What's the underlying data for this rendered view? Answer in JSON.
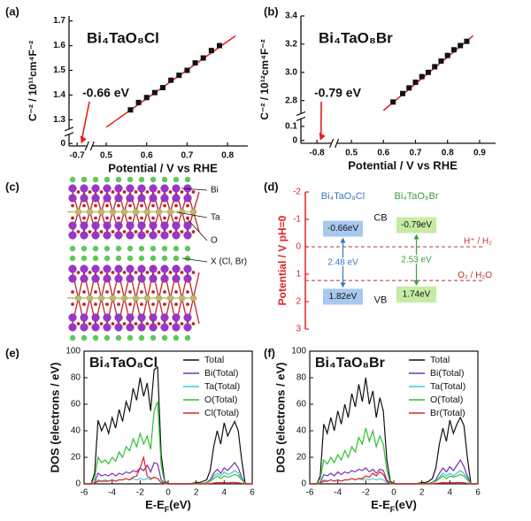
{
  "chart_data": [
    {
      "type": "scatter",
      "panel_label": "(a)",
      "title": "Bi₄TaO₈Cl",
      "x_label": "Potential / V vs RHE",
      "y_label": "C⁻² / 10¹¹cm⁴F⁻²",
      "xlim": [
        -0.72,
        0.85
      ],
      "xbreak": [
        -0.68,
        0.47
      ],
      "xticks": [
        -0.7,
        0.5,
        0.6,
        0.7,
        0.8
      ],
      "ylim": [
        -0.01,
        1.72
      ],
      "ybreak": [
        0.03,
        1.27
      ],
      "yticks": [
        0,
        1.3,
        1.4,
        1.5,
        1.6,
        1.7
      ],
      "points": {
        "color": "#111111",
        "x": [
          0.56,
          0.58,
          0.6,
          0.62,
          0.64,
          0.66,
          0.68,
          0.7,
          0.72,
          0.74,
          0.76,
          0.78
        ],
        "y": [
          1.34,
          1.37,
          1.39,
          1.41,
          1.43,
          1.46,
          1.48,
          1.5,
          1.53,
          1.55,
          1.58,
          1.6
        ]
      },
      "fit": {
        "color": "#e02020",
        "x": [
          0.5,
          0.82
        ],
        "y": [
          1.27,
          1.64
        ]
      },
      "annotation": {
        "text": "-0.66 eV",
        "x": -0.69,
        "y": 0,
        "color": "#e02020"
      }
    },
    {
      "type": "scatter",
      "panel_label": "(b)",
      "title": "Bi₄TaO₈Br",
      "x_label": "Potential / V vs RHE",
      "y_label": "C⁻² / 10¹²cm⁴F⁻²",
      "xlim": [
        -0.85,
        0.95
      ],
      "xbreak": [
        -0.76,
        0.46
      ],
      "xticks": [
        -0.8,
        0.5,
        0.6,
        0.7,
        0.8,
        0.9
      ],
      "ylim": [
        -0.02,
        3.4
      ],
      "ybreak": [
        0.14,
        2.72
      ],
      "yticks": [
        0,
        0.1,
        2.8,
        {
          "value": 3,
          "label": "3.0"
        },
        3.2,
        3.4
      ],
      "points": {
        "color": "#111111",
        "x": [
          0.63,
          0.66,
          0.68,
          0.7,
          0.72,
          0.74,
          0.76,
          0.78,
          0.8,
          0.82,
          0.84,
          0.86
        ],
        "y": [
          2.79,
          2.85,
          2.89,
          2.93,
          2.97,
          3.0,
          3.04,
          3.08,
          3.12,
          3.16,
          3.19,
          3.22
        ]
      },
      "fit": {
        "color": "#e02020",
        "x": [
          0.6,
          0.88
        ],
        "y": [
          2.73,
          3.26
        ]
      },
      "annotation": {
        "text": "-0.79 eV",
        "x": -0.79,
        "y": 0,
        "color": "#e02020"
      }
    },
    {
      "type": "band",
      "panel_label": "(d)",
      "y_label": "Potential / V pH=0",
      "ylim": [
        -2,
        3
      ],
      "yticks": [
        -2,
        -1,
        0,
        1,
        2,
        3
      ],
      "y_inverted": true,
      "axis_color": "#e02020",
      "materials": [
        {
          "name": "Bi₄TaO₈Cl",
          "color": "#3a78c0",
          "box_color": "#a9c8ef",
          "cb": -0.66,
          "cb_label": "-0.66eV",
          "vb": 1.82,
          "vb_label": "1.82eV",
          "gap": 2.48,
          "gap_label": "2.48 eV"
        },
        {
          "name": "Bi₄TaO₈Br",
          "color": "#3aa03a",
          "box_color": "#c6eca4",
          "cb": -0.79,
          "cb_label": "-0.79eV",
          "vb": 1.74,
          "vb_label": "1.74eV",
          "gap": 2.53,
          "gap_label": "2.53 eV"
        }
      ],
      "band_labels": [
        "CB",
        "VB"
      ],
      "levels": [
        {
          "label": "H⁺ / H₂",
          "value": 0
        },
        {
          "label": "O₂ / H₂O",
          "value": 1.23
        }
      ],
      "level_color": "#c03030"
    },
    {
      "type": "line",
      "panel_label": "(e)",
      "title": "Bi₄TaO₈Cl",
      "x_label": {
        "text": "E-E",
        "sub": "F",
        "tail": "(eV)"
      },
      "y_label": "DOS (electrons / eV)",
      "xlim": [
        -6,
        6
      ],
      "xticks": [
        -6,
        -4,
        -2,
        0,
        2,
        4,
        6
      ],
      "ylim": [
        0,
        100
      ],
      "yticks": [
        0,
        20,
        40,
        60,
        80,
        100
      ],
      "legend": "upper right",
      "x": [
        -6,
        -5.75,
        -5.5,
        -5.25,
        -5,
        -4.75,
        -4.5,
        -4.25,
        -4,
        -3.75,
        -3.5,
        -3.25,
        -3,
        -2.75,
        -2.5,
        -2.25,
        -2,
        -1.75,
        -1.5,
        -1.25,
        -1,
        -0.75,
        -0.5,
        -0.25,
        0,
        0.25,
        0.5,
        0.75,
        1,
        1.25,
        1.5,
        1.75,
        2,
        2.25,
        2.5,
        2.75,
        3,
        3.25,
        3.5,
        3.75,
        4,
        4.25,
        4.5,
        4.75,
        5,
        5.25,
        5.5,
        5.75,
        6
      ],
      "series": [
        {
          "name": "Total",
          "color": "#111111",
          "values": [
            0,
            0,
            0,
            8,
            48,
            40,
            46,
            38,
            50,
            42,
            56,
            47,
            62,
            55,
            72,
            63,
            80,
            66,
            76,
            55,
            86,
            88,
            22,
            2,
            0,
            0,
            0,
            0,
            0,
            0,
            0,
            0.5,
            1,
            1,
            2,
            3,
            10,
            28,
            40,
            30,
            46,
            36,
            42,
            47,
            40,
            18,
            0,
            0,
            0
          ]
        },
        {
          "name": "Bi(Total)",
          "color": "#7a30b0",
          "values": [
            0,
            0,
            0,
            1,
            8,
            6,
            7,
            6,
            8,
            6,
            8,
            7,
            9,
            8,
            10,
            9,
            12,
            10,
            14,
            9,
            16,
            15,
            3,
            0.5,
            0,
            0,
            0,
            0,
            0,
            0,
            0,
            0.1,
            0.2,
            0.3,
            0.5,
            1,
            3,
            8,
            11,
            8,
            12,
            10,
            13,
            16,
            12,
            5,
            0,
            0,
            0
          ]
        },
        {
          "name": "Ta(Total)",
          "color": "#40c8d0",
          "values": [
            0,
            0,
            0,
            0.5,
            3,
            2,
            3,
            2,
            3,
            2,
            3,
            3,
            4,
            3,
            4,
            3,
            4,
            3,
            4,
            3,
            5,
            4,
            1,
            0.2,
            0,
            0,
            0,
            0,
            0,
            0,
            0,
            0.1,
            0.2,
            0.2,
            0.4,
            0.8,
            2,
            6,
            8,
            6,
            9,
            7,
            8,
            10,
            8,
            4,
            0,
            0,
            0
          ]
        },
        {
          "name": "O(Total)",
          "color": "#30c030",
          "values": [
            0,
            0,
            0,
            4,
            20,
            16,
            18,
            15,
            20,
            17,
            24,
            20,
            28,
            25,
            34,
            28,
            38,
            30,
            36,
            26,
            55,
            62,
            14,
            1,
            0,
            0,
            0,
            0,
            0,
            0,
            0,
            0.2,
            0.3,
            0.3,
            0.5,
            0.8,
            2,
            4,
            6,
            4,
            6,
            5,
            6,
            7,
            6,
            3,
            0,
            0,
            0
          ]
        },
        {
          "name": "Cl(Total)",
          "color": "#e02020",
          "values": [
            0,
            0,
            0,
            0.5,
            2,
            2,
            2,
            2,
            3,
            2,
            3,
            3,
            4,
            3,
            5,
            6,
            12,
            20,
            6,
            4,
            5,
            4,
            1,
            0.2,
            0,
            0,
            0,
            0,
            0,
            0,
            0,
            0,
            0,
            0,
            0,
            0,
            0.3,
            0.6,
            1,
            0.8,
            1,
            0.8,
            1,
            1,
            0.8,
            0.4,
            0,
            0,
            0
          ]
        }
      ]
    },
    {
      "type": "line",
      "panel_label": "(f)",
      "title": "Bi₄TaO₈Br",
      "x_label": {
        "text": "E-E",
        "sub": "F",
        "tail": "(eV)"
      },
      "y_label": "DOS (electrons / eV)",
      "xlim": [
        -6,
        6
      ],
      "xticks": [
        -6,
        -4,
        -2,
        0,
        2,
        4,
        6
      ],
      "ylim": [
        0,
        100
      ],
      "yticks": [
        0,
        20,
        40,
        60,
        80,
        100
      ],
      "legend": "upper right",
      "x": [
        -6,
        -5.75,
        -5.5,
        -5.25,
        -5,
        -4.75,
        -4.5,
        -4.25,
        -4,
        -3.75,
        -3.5,
        -3.25,
        -3,
        -2.75,
        -2.5,
        -2.25,
        -2,
        -1.75,
        -1.5,
        -1.25,
        -1,
        -0.75,
        -0.5,
        -0.25,
        0,
        0.25,
        0.5,
        0.75,
        1,
        1.25,
        1.5,
        1.75,
        2,
        2.25,
        2.5,
        2.75,
        3,
        3.25,
        3.5,
        3.75,
        4,
        4.25,
        4.5,
        4.75,
        5,
        5.25,
        5.5,
        5.75,
        6
      ],
      "series": [
        {
          "name": "Total",
          "color": "#111111",
          "values": [
            0,
            0,
            0,
            6,
            45,
            38,
            50,
            40,
            55,
            45,
            60,
            50,
            68,
            58,
            75,
            62,
            80,
            60,
            70,
            50,
            65,
            55,
            18,
            2,
            0,
            0,
            0,
            0,
            0,
            0,
            0,
            0.5,
            1,
            1,
            2,
            4,
            12,
            30,
            42,
            32,
            48,
            38,
            45,
            50,
            44,
            20,
            0,
            0,
            0
          ]
        },
        {
          "name": "Bi(Total)",
          "color": "#7a30b0",
          "values": [
            0,
            0,
            0,
            1,
            7,
            6,
            8,
            6,
            9,
            7,
            9,
            8,
            10,
            9,
            11,
            10,
            12,
            9,
            11,
            8,
            11,
            10,
            3,
            0.5,
            0,
            0,
            0,
            0,
            0,
            0,
            0,
            0.1,
            0.2,
            0.3,
            0.5,
            1,
            3,
            8,
            12,
            9,
            13,
            10,
            14,
            18,
            13,
            6,
            0,
            0,
            0
          ]
        },
        {
          "name": "Ta(Total)",
          "color": "#40c8d0",
          "values": [
            0,
            0,
            0,
            0.5,
            3,
            2,
            3,
            2,
            3,
            2,
            3,
            3,
            4,
            3,
            4,
            3,
            4,
            3,
            4,
            3,
            4,
            3,
            1,
            0.2,
            0,
            0,
            0,
            0,
            0,
            0,
            0,
            0.1,
            0.2,
            0.2,
            0.4,
            0.8,
            2,
            5,
            8,
            6,
            8,
            6,
            8,
            10,
            8,
            4,
            0,
            0,
            0
          ]
        },
        {
          "name": "O(Total)",
          "color": "#30c030",
          "values": [
            0,
            0,
            0,
            4,
            18,
            15,
            20,
            16,
            22,
            18,
            25,
            20,
            28,
            24,
            35,
            30,
            42,
            32,
            40,
            28,
            36,
            30,
            10,
            1,
            0,
            0,
            0,
            0,
            0,
            0,
            0,
            0.2,
            0.3,
            0.3,
            0.5,
            0.8,
            2,
            4,
            6,
            4,
            6,
            5,
            6,
            7,
            6,
            3,
            0,
            0,
            0
          ]
        },
        {
          "name": "Br(Total)",
          "color": "#e02020",
          "values": [
            0,
            0,
            0,
            0.5,
            2,
            2,
            3,
            2,
            3,
            2,
            3,
            3,
            4,
            3,
            4,
            4,
            6,
            5,
            8,
            6,
            9,
            7,
            2,
            0.2,
            0,
            0,
            0,
            0,
            0,
            0,
            0,
            0,
            0,
            0,
            0,
            0,
            0.3,
            0.6,
            1,
            0.8,
            1,
            0.8,
            1,
            1,
            0.8,
            0.4,
            0,
            0,
            0
          ]
        }
      ]
    }
  ],
  "structure": {
    "panel_label": "(c)",
    "labels": [
      "Bi",
      "Ta",
      "O",
      "X (Cl, Br)"
    ]
  }
}
